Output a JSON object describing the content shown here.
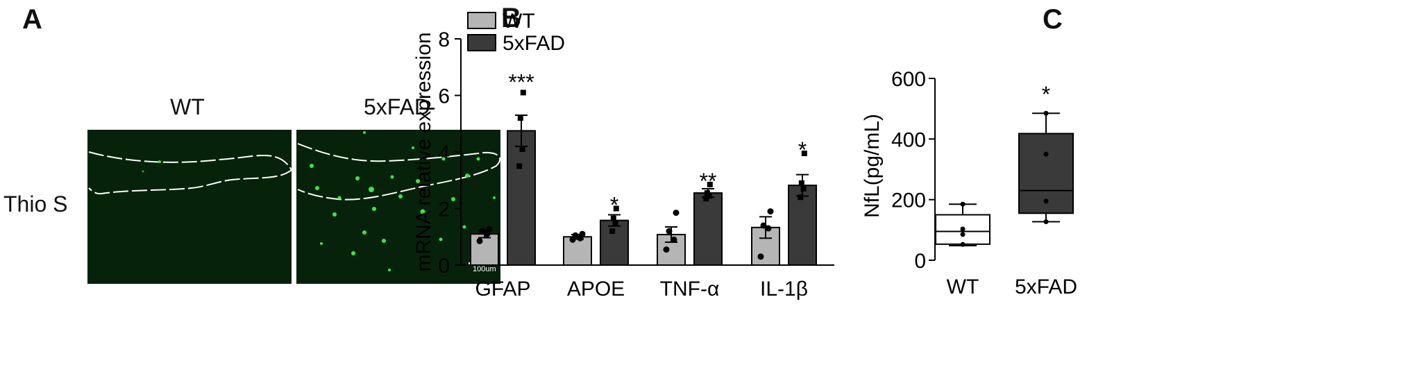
{
  "panels": {
    "a": {
      "letter": "A",
      "image_titles": [
        "WT",
        "5xFAD"
      ],
      "row_label": "Thio S",
      "scale_bar_label": "100um",
      "colors": {
        "background": "#07220a",
        "signal": "#39e64a",
        "outline": "#ffffff"
      }
    },
    "b": {
      "letter": "B"
    },
    "c": {
      "letter": "C"
    }
  },
  "chart_data": [
    {
      "type": "bar",
      "panel": "B",
      "categories": [
        "GFAP",
        "APOE",
        "TNF-α",
        "IL-1β"
      ],
      "series": [
        {
          "name": "WT",
          "values": [
            1.1,
            1.0,
            1.08,
            1.33
          ],
          "sem": [
            0.13,
            0.08,
            0.27,
            0.38
          ],
          "points": [
            [
              0.85,
              1.1,
              1.2,
              1.28
            ],
            [
              0.9,
              0.95,
              1.05,
              1.1
            ],
            [
              0.55,
              0.9,
              1.2,
              1.85
            ],
            [
              0.3,
              1.3,
              1.4,
              1.9
            ]
          ]
        },
        {
          "name": "5xFAD",
          "values": [
            4.75,
            1.58,
            2.55,
            2.82
          ],
          "sem": [
            0.55,
            0.2,
            0.15,
            0.38
          ],
          "points": [
            [
              3.5,
              4.1,
              5.2,
              6.1
            ],
            [
              1.2,
              1.5,
              1.65,
              2.0
            ],
            [
              2.35,
              2.45,
              2.55,
              2.85
            ],
            [
              2.4,
              2.7,
              2.9,
              3.95
            ]
          ]
        }
      ],
      "significance": [
        "***",
        "*",
        "**",
        "*"
      ],
      "ylabel": "mRNA relative expression",
      "ylim": [
        0,
        8
      ],
      "yticks": [
        0,
        2,
        4,
        6,
        8
      ],
      "legend": "top-left",
      "colors": {
        "WT": "#b5b5b5",
        "5xFAD": "#3a3a3a"
      }
    },
    {
      "type": "box",
      "panel": "C",
      "categories": [
        "WT",
        "5xFAD"
      ],
      "boxes": [
        {
          "whisker_low": 48,
          "q1": 53,
          "median": 95,
          "q3": 150,
          "whisker_high": 185,
          "points": [
            52,
            85,
            103,
            185
          ]
        },
        {
          "whisker_low": 127,
          "q1": 155,
          "median": 230,
          "q3": 418,
          "whisker_high": 485,
          "points": [
            127,
            195,
            350,
            485
          ]
        }
      ],
      "significance": [
        "",
        "*"
      ],
      "ylabel": "NfL(pg/mL)",
      "ylim": [
        0,
        600
      ],
      "yticks": [
        0,
        200,
        400,
        600
      ],
      "colors": {
        "WT": "#ffffff",
        "5xFAD": "#3a3a3a"
      }
    }
  ]
}
